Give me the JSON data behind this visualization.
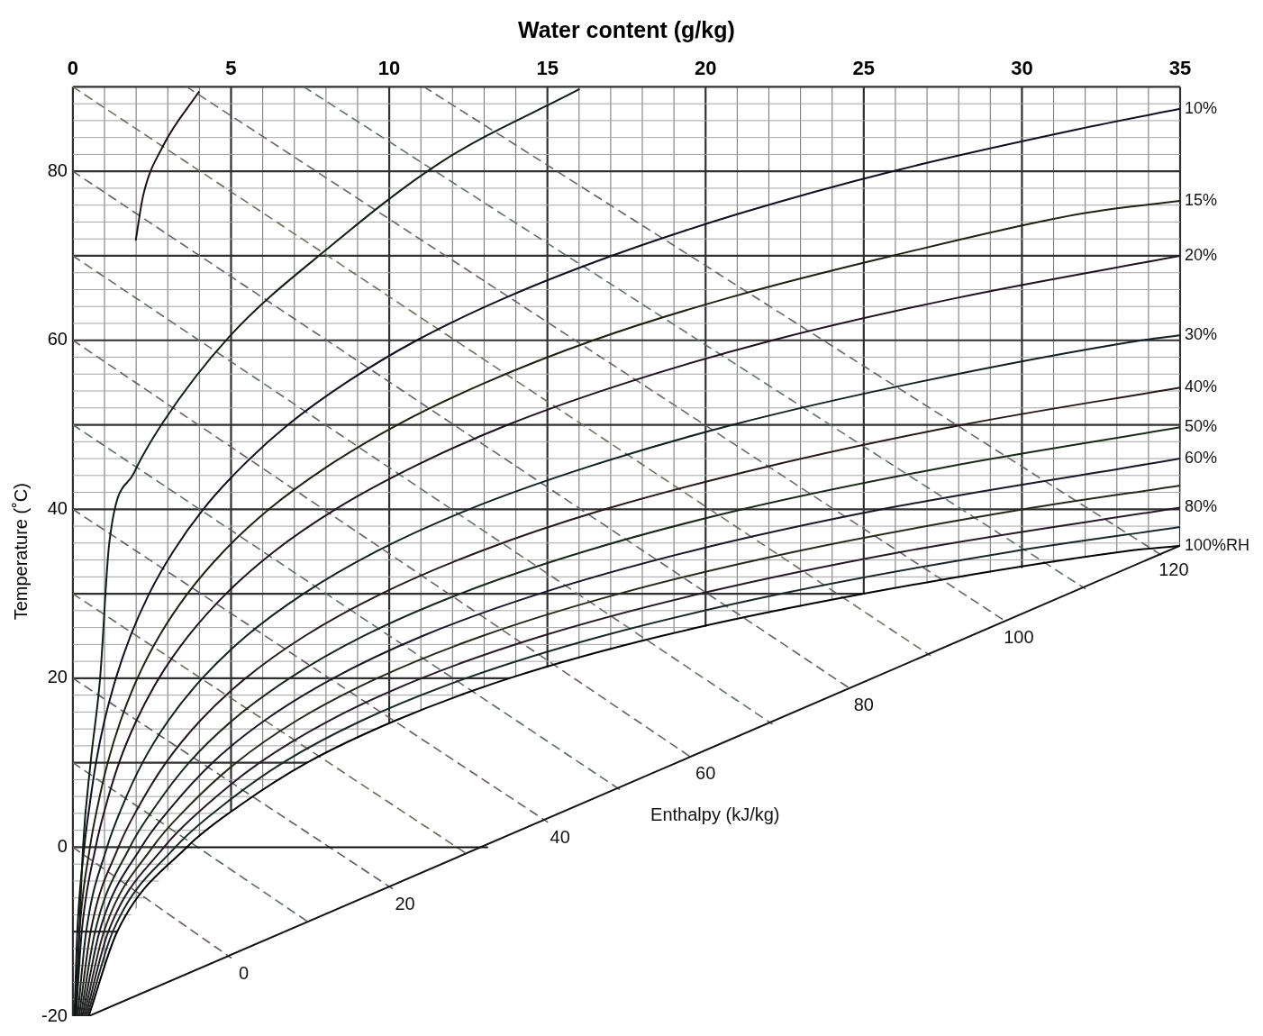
{
  "chart_data": {
    "type": "line",
    "xlabel": "Water content (g/kg)",
    "ylabel": "Temperature (˚C)",
    "xlim": [
      0,
      35
    ],
    "ylim": [
      -20,
      90
    ],
    "xticks": [
      0,
      {
        "value": 1,
        "label": null
      },
      {
        "value": 2,
        "label": null
      },
      {
        "value": 3,
        "label": null
      },
      {
        "value": 4,
        "label": null
      },
      5,
      {
        "value": 6,
        "label": null
      },
      {
        "value": 7,
        "label": null
      },
      {
        "value": 8,
        "label": null
      },
      {
        "value": 9,
        "label": null
      },
      10,
      {
        "value": 11,
        "label": null
      },
      {
        "value": 12,
        "label": null
      },
      {
        "value": 13,
        "label": null
      },
      {
        "value": 14,
        "label": null
      },
      15,
      {
        "value": 16,
        "label": null
      },
      {
        "value": 17,
        "label": null
      },
      {
        "value": 18,
        "label": null
      },
      {
        "value": 19,
        "label": null
      },
      20,
      {
        "value": 21,
        "label": null
      },
      {
        "value": 22,
        "label": null
      },
      {
        "value": 23,
        "label": null
      },
      {
        "value": 24,
        "label": null
      },
      25,
      {
        "value": 26,
        "label": null
      },
      {
        "value": 27,
        "label": null
      },
      {
        "value": 28,
        "label": null
      },
      {
        "value": 29,
        "label": null
      },
      30,
      {
        "value": 31,
        "label": null
      },
      {
        "value": 32,
        "label": null
      },
      {
        "value": 33,
        "label": null
      },
      {
        "value": 34,
        "label": null
      },
      35
    ],
    "yticks": [
      -20,
      {
        "value": -18,
        "label": null
      },
      {
        "value": -16,
        "label": null
      },
      {
        "value": -14,
        "label": null
      },
      {
        "value": -12,
        "label": null
      },
      {
        "value": -10,
        "label": null
      },
      {
        "value": -8,
        "label": null
      },
      {
        "value": -6,
        "label": null
      },
      {
        "value": -4,
        "label": null
      },
      {
        "value": -2,
        "label": null
      },
      0,
      {
        "value": 2,
        "label": null
      },
      {
        "value": 4,
        "label": null
      },
      {
        "value": 6,
        "label": null
      },
      {
        "value": 8,
        "label": null
      },
      {
        "value": 10,
        "label": null
      },
      {
        "value": 12,
        "label": null
      },
      {
        "value": 14,
        "label": null
      },
      {
        "value": 16,
        "label": null
      },
      {
        "value": 18,
        "label": null
      },
      20,
      {
        "value": 22,
        "label": null
      },
      {
        "value": 24,
        "label": null
      },
      {
        "value": 26,
        "label": null
      },
      {
        "value": 28,
        "label": null
      },
      {
        "value": 30,
        "label": null
      },
      {
        "value": 32,
        "label": null
      },
      {
        "value": 34,
        "label": null
      },
      {
        "value": 36,
        "label": null
      },
      {
        "value": 38,
        "label": null
      },
      40,
      {
        "value": 42,
        "label": null
      },
      {
        "value": 44,
        "label": null
      },
      {
        "value": 46,
        "label": null
      },
      {
        "value": 48,
        "label": null
      },
      {
        "value": 50,
        "label": null
      },
      {
        "value": 52,
        "label": null
      },
      {
        "value": 54,
        "label": null
      },
      {
        "value": 56,
        "label": null
      },
      {
        "value": 58,
        "label": null
      },
      60,
      {
        "value": 62,
        "label": null
      },
      {
        "value": 64,
        "label": null
      },
      {
        "value": 66,
        "label": null
      },
      {
        "value": 68,
        "label": null
      },
      {
        "value": 70,
        "label": null
      },
      {
        "value": 72,
        "label": null
      },
      {
        "value": 74,
        "label": null
      },
      {
        "value": 76,
        "label": null
      },
      {
        "value": 78,
        "label": null
      },
      80,
      {
        "value": 82,
        "label": null
      },
      {
        "value": 84,
        "label": null
      },
      {
        "value": 86,
        "label": null
      },
      {
        "value": 88,
        "label": null
      },
      {
        "value": 90,
        "label": null
      }
    ],
    "grid": true,
    "marker": "none",
    "series": [
      {
        "color": "#201010",
        "x": [
          1.99,
          2.22,
          2.85,
          3.98
        ],
        "values": [
          71.9,
          77.1,
          83,
          89.4
        ]
      },
      {
        "color": "#102010",
        "x": [
          0.1,
          0.32,
          0.56,
          0.86,
          1.15,
          1.93,
          2.85,
          4.96,
          8.1,
          11.6,
          16.0
        ],
        "values": [
          -20,
          0,
          10,
          20,
          36,
          44.3,
          50.3,
          60.5,
          71,
          81,
          89.7
        ]
      },
      {
        "name": "10%",
        "color": "#101020",
        "x": [
          0.05,
          0.14,
          0.36,
          0.53,
          0.73,
          1.0,
          1.36,
          1.82,
          2.41,
          3.17,
          4.12,
          5.33,
          6.8,
          8.64,
          10.87,
          13.65,
          17.03,
          21.07,
          25.9,
          31.8,
          35
        ],
        "values": [
          -20,
          -10,
          0,
          5,
          10,
          15,
          20,
          25,
          30,
          35,
          40,
          45,
          50,
          55,
          60,
          65,
          70,
          75,
          80,
          85,
          87.4
        ]
      },
      {
        "name": "15%",
        "color": "#202010",
        "x": [
          0.08,
          0.21,
          0.54,
          0.79,
          1.1,
          1.51,
          2.04,
          2.73,
          3.62,
          4.76,
          6.2,
          8.02,
          10.26,
          13.05,
          16.45,
          20.7,
          25.9,
          31.9,
          35
        ],
        "values": [
          -20,
          -10,
          0,
          5,
          10,
          15,
          20,
          25,
          30,
          35,
          40,
          45,
          50,
          55,
          60,
          65,
          70,
          75,
          76.5
        ]
      },
      {
        "name": "20%",
        "color": "#201020",
        "x": [
          0.1,
          0.28,
          0.72,
          1.05,
          1.46,
          2.01,
          2.72,
          3.65,
          4.84,
          6.36,
          8.3,
          10.75,
          13.75,
          17.52,
          22.12,
          27.92,
          35
        ],
        "values": [
          -20,
          -10,
          0,
          5,
          10,
          15,
          20,
          25,
          30,
          35,
          40,
          45,
          50,
          55,
          60,
          65,
          70
        ]
      },
      {
        "name": "30%",
        "color": "#102020",
        "x": [
          0.15,
          0.42,
          1.08,
          1.58,
          2.2,
          3.02,
          4.09,
          5.48,
          7.29,
          9.59,
          12.53,
          16.27,
          20.86,
          26.66,
          33.78,
          35
        ],
        "values": [
          -20,
          -10,
          0,
          5,
          10,
          15,
          20,
          25,
          30,
          35,
          40,
          45,
          50,
          55,
          60,
          60.6
        ]
      },
      {
        "name": "40%",
        "color": "#281818",
        "x": [
          0.2,
          0.56,
          1.44,
          2.11,
          2.94,
          4.03,
          5.46,
          7.33,
          9.75,
          12.86,
          16.82,
          21.89,
          28.13,
          35
        ],
        "values": [
          -20,
          -10,
          0,
          5,
          10,
          15,
          20,
          25,
          30,
          35,
          40,
          45,
          50,
          54.4
        ]
      },
      {
        "name": "50%",
        "color": "#182818",
        "x": [
          0.25,
          0.7,
          1.8,
          2.64,
          3.67,
          5.04,
          6.85,
          9.19,
          12.24,
          16.16,
          21.17,
          27.6,
          35
        ],
        "values": [
          -20,
          -10,
          0,
          5,
          10,
          15,
          20,
          25,
          30,
          35,
          40,
          45,
          49.7
        ]
      },
      {
        "name": "60%",
        "color": "#181828",
        "x": [
          0.3,
          0.84,
          2.16,
          3.17,
          4.41,
          6.06,
          8.23,
          11.05,
          14.74,
          19.49,
          25.58,
          33.4,
          35
        ],
        "values": [
          -20,
          -10,
          0,
          5,
          10,
          15,
          20,
          25,
          30,
          35,
          40,
          45,
          46
        ]
      },
      {
        "color": "#282818",
        "x": [
          0.35,
          0.98,
          2.52,
          3.7,
          5.16,
          7.08,
          9.62,
          12.94,
          17.26,
          22.85,
          30.05,
          35
        ],
        "values": [
          -20,
          -10,
          0,
          5,
          10,
          15,
          20,
          25,
          30,
          35,
          40,
          42.8
        ]
      },
      {
        "name": "80%",
        "color": "#281828",
        "x": [
          0.4,
          1.12,
          2.88,
          4.23,
          5.9,
          8.11,
          11.02,
          14.83,
          19.82,
          26.26,
          35
        ],
        "values": [
          -20,
          -10,
          0,
          5,
          10,
          15,
          20,
          25,
          30,
          35,
          40.2
        ]
      },
      {
        "color": "#182828",
        "x": [
          0.45,
          1.26,
          3.24,
          4.76,
          6.64,
          9.14,
          12.43,
          16.74,
          22.39,
          29.7,
          35
        ],
        "values": [
          -20,
          -10,
          0,
          5,
          10,
          15,
          20,
          25,
          30,
          35,
          37.9
        ]
      },
      {
        "name": "100%RH",
        "color": "#000000",
        "x": [
          0.5,
          1.4,
          3.6,
          5.3,
          7.4,
          10.2,
          13.8,
          18.6,
          25,
          33.2,
          35
        ],
        "values": [
          -20,
          -10,
          0,
          5,
          10,
          15,
          20,
          25,
          30,
          35,
          35.7
        ]
      },
      {
        "color": "#141414",
        "x": [
          0.5,
          35
        ],
        "values": [
          -20,
          35.7
        ]
      },
      {
        "color": "#0c0c0c",
        "x": [
          3.6,
          13.1
        ],
        "values": [
          0,
          0
        ]
      },
      {
        "color": "#6a5a5a",
        "line_style": "dashed",
        "x": [
          0,
          5.0
        ],
        "values": [
          0,
          -13.1
        ]
      },
      {
        "color": "#5a6a5a",
        "line_style": "dashed",
        "x": [
          0,
          7.5
        ],
        "values": [
          10,
          -9.0
        ]
      },
      {
        "color": "#5a5a6a",
        "line_style": "dashed",
        "x": [
          0,
          10.1
        ],
        "values": [
          20,
          -4.9
        ]
      },
      {
        "color": "#6a6a5a",
        "line_style": "dashed",
        "x": [
          0,
          12.5
        ],
        "values": [
          30,
          -0.9
        ]
      },
      {
        "color": "#6a5a6a",
        "line_style": "dashed",
        "x": [
          0,
          15.0
        ],
        "values": [
          40,
          3.0
        ]
      },
      {
        "color": "#5a6a6a",
        "line_style": "dashed",
        "x": [
          0,
          17.3
        ],
        "values": [
          50,
          6.8
        ]
      },
      {
        "color": "#706060",
        "line_style": "dashed",
        "x": [
          0,
          19.6
        ],
        "values": [
          60,
          10.5
        ]
      },
      {
        "color": "#607060",
        "line_style": "dashed",
        "x": [
          0,
          22.1
        ],
        "values": [
          70,
          14.6
        ]
      },
      {
        "color": "#606070",
        "line_style": "dashed",
        "x": [
          0,
          24.6
        ],
        "values": [
          80,
          18.7
        ]
      },
      {
        "color": "#707060",
        "line_style": "dashed",
        "x": [
          0,
          27.1
        ],
        "values": [
          90,
          22.7
        ]
      },
      {
        "color": "#706070",
        "line_style": "dashed",
        "x": [
          3.6,
          29.5
        ],
        "values": [
          90,
          26.7
        ]
      },
      {
        "color": "#607070",
        "line_style": "dashed",
        "x": [
          7.3,
          32.0
        ],
        "values": [
          90,
          30.6
        ]
      },
      {
        "color": "#646464",
        "line_style": "dashed",
        "x": [
          11.1,
          34.4
        ],
        "values": [
          90,
          34.6
        ]
      }
    ],
    "annotations": [
      {
        "text": "0",
        "x": 5.0,
        "y": -13.1
      },
      {
        "text": "20",
        "x": 10.1,
        "y": -4.9
      },
      {
        "text": "40",
        "x": 15.0,
        "y": 3.0
      },
      {
        "text": "60",
        "x": 19.6,
        "y": 10.5
      },
      {
        "text": "80",
        "x": 24.6,
        "y": 18.7
      },
      {
        "text": "100",
        "x": 29.5,
        "y": 26.7
      },
      {
        "text": "120",
        "x": 34.4,
        "y": 34.6
      },
      "Enthalpy (kJ/kg)"
    ]
  }
}
